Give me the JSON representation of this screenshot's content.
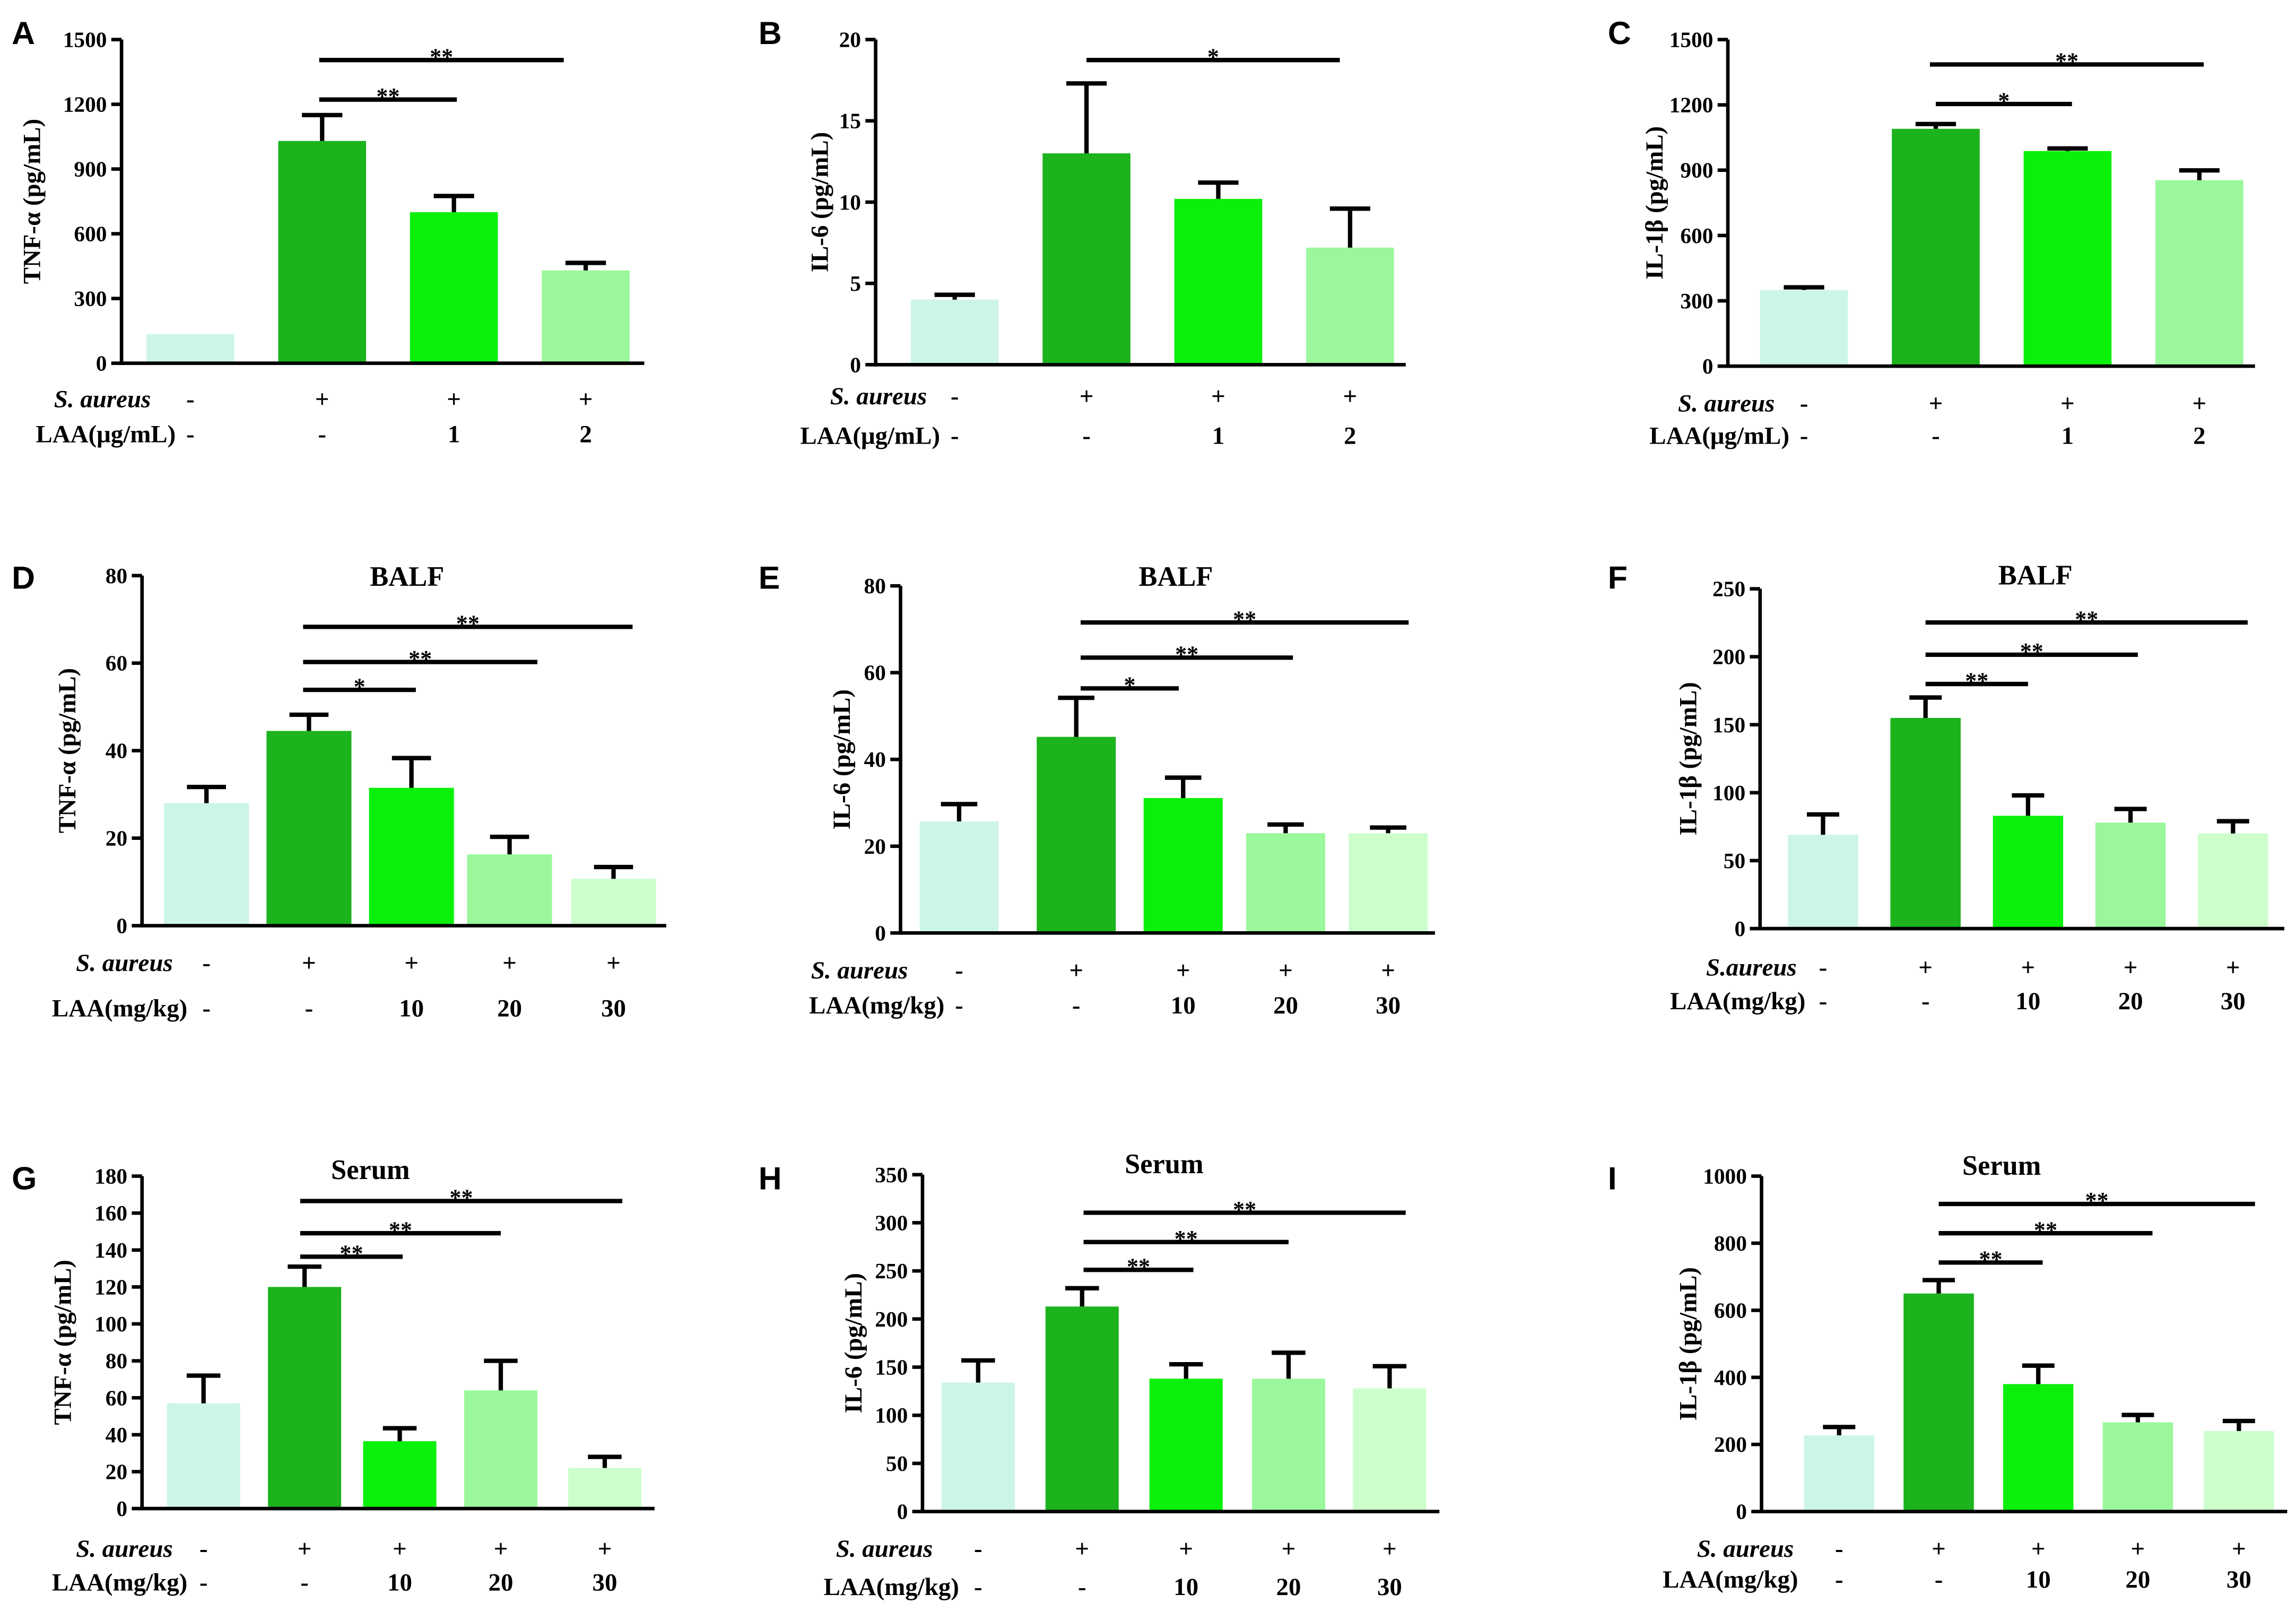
{
  "colors": {
    "bar_fills": [
      "#ccf5e8",
      "#1cb31c",
      "#0af00a",
      "#9bf79b",
      "#ccffcc"
    ],
    "axis": "#000000"
  },
  "chart_data": [
    {
      "panel": "A",
      "type": "bar",
      "ylabel": "TNF-α (pg/mL)",
      "ylim": [
        0,
        1500
      ],
      "yticks": [
        0,
        300,
        600,
        900,
        1200,
        1500
      ],
      "values": [
        135,
        1030,
        700,
        430
      ],
      "errors": [
        0,
        120,
        75,
        35
      ],
      "groups": [
        {
          "label": "S. aureus",
          "values": [
            "-",
            "+",
            "+",
            "+"
          ]
        },
        {
          "label": "LAA(μg/mL)",
          "values": [
            "-",
            "-",
            "1",
            "2"
          ]
        }
      ],
      "annotations": [
        {
          "from": 1,
          "to": 2,
          "label": "**"
        },
        {
          "from": 1,
          "to": 3,
          "label": "**"
        }
      ]
    },
    {
      "panel": "B",
      "type": "bar",
      "ylabel": "IL-6 (pg/mL)",
      "ylim": [
        0,
        20
      ],
      "yticks": [
        0,
        5,
        10,
        15,
        20
      ],
      "values": [
        4.0,
        13.0,
        10.2,
        7.2
      ],
      "errors": [
        0.3,
        4.3,
        1.0,
        2.4
      ],
      "groups": [
        {
          "label": "S. aureus",
          "values": [
            "-",
            "+",
            "+",
            "+"
          ]
        },
        {
          "label": "LAA(μg/mL)",
          "values": [
            "-",
            "-",
            "1",
            "2"
          ]
        }
      ],
      "annotations": [
        {
          "from": 1,
          "to": 3,
          "label": "*"
        }
      ]
    },
    {
      "panel": "C",
      "type": "bar",
      "ylabel": "IL-1β (pg/mL)",
      "ylim": [
        0,
        1500
      ],
      "yticks": [
        0,
        300,
        600,
        900,
        1200,
        1500
      ],
      "values": [
        350,
        1090,
        988,
        854
      ],
      "errors": [
        12,
        22,
        12,
        45
      ],
      "groups": [
        {
          "label": "S. aureus",
          "values": [
            "-",
            "+",
            "+",
            "+"
          ]
        },
        {
          "label": "LAA(μg/mL)",
          "values": [
            "-",
            "-",
            "1",
            "2"
          ]
        }
      ],
      "annotations": [
        {
          "from": 1,
          "to": 2,
          "label": "*"
        },
        {
          "from": 1,
          "to": 3,
          "label": "**"
        }
      ]
    },
    {
      "panel": "D",
      "type": "bar",
      "title": "BALF",
      "ylabel": "TNF-α (pg/mL)",
      "ylim": [
        0,
        80
      ],
      "yticks": [
        0,
        20,
        40,
        60,
        80
      ],
      "values": [
        28,
        44.5,
        31.5,
        16.3,
        10.7
      ],
      "errors": [
        3.7,
        3.7,
        6.8,
        4,
        2.7
      ],
      "groups": [
        {
          "label": "S. aureus",
          "values": [
            "-",
            "+",
            "+",
            "+",
            "+"
          ]
        },
        {
          "label": "LAA(mg/kg)",
          "values": [
            "-",
            "-",
            "10",
            "20",
            "30"
          ]
        }
      ],
      "annotations": [
        {
          "from": 1,
          "to": 2,
          "label": "*"
        },
        {
          "from": 1,
          "to": 3,
          "label": "**"
        },
        {
          "from": 1,
          "to": 4,
          "label": "**"
        }
      ]
    },
    {
      "panel": "E",
      "type": "bar",
      "title": "BALF",
      "ylabel": "IL-6 (pg/mL)",
      "ylim": [
        0,
        80
      ],
      "yticks": [
        0,
        20,
        40,
        60,
        80
      ],
      "values": [
        25.7,
        45.2,
        31.1,
        23,
        23
      ],
      "errors": [
        4,
        9,
        4.7,
        2,
        1.3
      ],
      "groups": [
        {
          "label": "S. aureus",
          "values": [
            "-",
            "+",
            "+",
            "+",
            "+"
          ]
        },
        {
          "label": "LAA(mg/kg)",
          "values": [
            "-",
            "-",
            "10",
            "20",
            "30"
          ]
        }
      ],
      "annotations": [
        {
          "from": 1,
          "to": 2,
          "label": "*"
        },
        {
          "from": 1,
          "to": 3,
          "label": "**"
        },
        {
          "from": 1,
          "to": 4,
          "label": "**"
        }
      ]
    },
    {
      "panel": "F",
      "type": "bar",
      "title": "BALF",
      "ylabel": "IL-1β (pg/mL)",
      "ylim": [
        0,
        250
      ],
      "yticks": [
        0,
        50,
        100,
        150,
        200,
        250
      ],
      "values": [
        69,
        155,
        83,
        78,
        70
      ],
      "errors": [
        15,
        15,
        15,
        10,
        9
      ],
      "groups": [
        {
          "label": "S.aureus",
          "values": [
            "-",
            "+",
            "+",
            "+",
            "+"
          ]
        },
        {
          "label": "LAA(mg/kg)",
          "values": [
            "-",
            "-",
            "10",
            "20",
            "30"
          ]
        }
      ],
      "annotations": [
        {
          "from": 1,
          "to": 2,
          "label": "**"
        },
        {
          "from": 1,
          "to": 3,
          "label": "**"
        },
        {
          "from": 1,
          "to": 4,
          "label": "**"
        }
      ]
    },
    {
      "panel": "G",
      "type": "bar",
      "title": "Serum",
      "ylabel": "TNF-α (pg/mL)",
      "ylim": [
        0,
        180
      ],
      "yticks": [
        0,
        20,
        40,
        60,
        80,
        100,
        120,
        140,
        160,
        180
      ],
      "values": [
        57,
        120,
        36.5,
        64,
        22
      ],
      "errors": [
        15,
        11,
        7,
        16,
        6
      ],
      "groups": [
        {
          "label": "S. aureus",
          "values": [
            "-",
            "+",
            "+",
            "+",
            "+"
          ]
        },
        {
          "label": "LAA(mg/kg)",
          "values": [
            "-",
            "-",
            "10",
            "20",
            "30"
          ]
        }
      ],
      "annotations": [
        {
          "from": 1,
          "to": 2,
          "label": "**"
        },
        {
          "from": 1,
          "to": 3,
          "label": "**"
        },
        {
          "from": 1,
          "to": 4,
          "label": "**"
        }
      ]
    },
    {
      "panel": "H",
      "type": "bar",
      "title": "Serum",
      "ylabel": "IL-6 (pg/mL)",
      "ylim": [
        0,
        350
      ],
      "yticks": [
        0,
        50,
        100,
        150,
        200,
        250,
        300,
        350
      ],
      "values": [
        134,
        213,
        138,
        138,
        128
      ],
      "errors": [
        23,
        19,
        15,
        27,
        23
      ],
      "groups": [
        {
          "label": "S. aureus",
          "values": [
            "-",
            "+",
            "+",
            "+",
            "+"
          ]
        },
        {
          "label": "LAA(mg/kg)",
          "values": [
            "-",
            "-",
            "10",
            "20",
            "30"
          ]
        }
      ],
      "annotations": [
        {
          "from": 1,
          "to": 2,
          "label": "**"
        },
        {
          "from": 1,
          "to": 3,
          "label": "**"
        },
        {
          "from": 1,
          "to": 4,
          "label": "**"
        }
      ]
    },
    {
      "panel": "I",
      "type": "bar",
      "title": "Serum",
      "ylabel": "IL-1β (pg/mL)",
      "ylim": [
        0,
        1000
      ],
      "yticks": [
        0,
        200,
        400,
        600,
        800,
        1000
      ],
      "values": [
        227,
        650,
        380,
        266,
        240
      ],
      "errors": [
        25,
        40,
        55,
        22,
        30
      ],
      "groups": [
        {
          "label": "S. aureus",
          "values": [
            "-",
            "+",
            "+",
            "+",
            "+"
          ]
        },
        {
          "label": "LAA(mg/kg)",
          "values": [
            "-",
            "-",
            "10",
            "20",
            "30"
          ]
        }
      ],
      "annotations": [
        {
          "from": 1,
          "to": 2,
          "label": "**"
        },
        {
          "from": 1,
          "to": 3,
          "label": "**"
        },
        {
          "from": 1,
          "to": 4,
          "label": "**"
        }
      ]
    }
  ]
}
